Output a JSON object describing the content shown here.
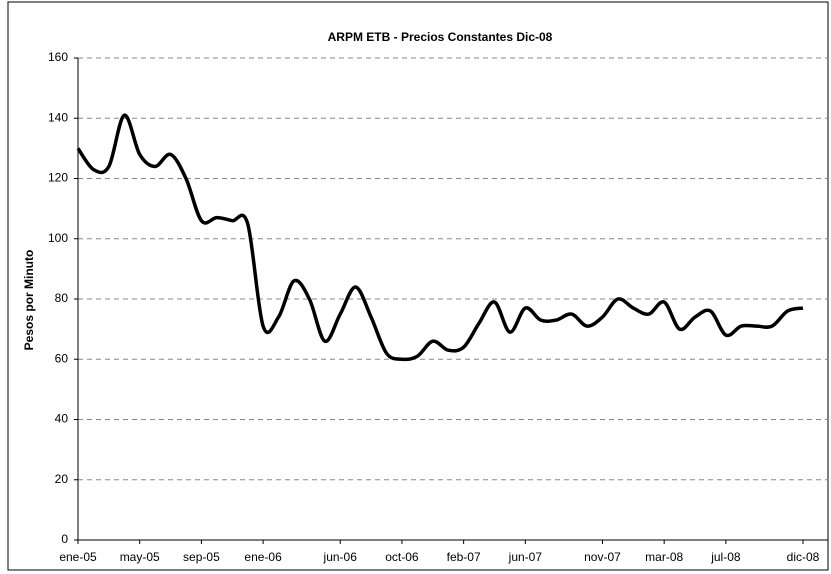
{
  "chart_data": {
    "type": "line",
    "title": "ARPM ETB - Precios Constantes Dic-08",
    "y_label": "Pesos por Minuto",
    "categories": [
      "ene-05",
      null,
      null,
      null,
      "may-05",
      null,
      null,
      null,
      "sep-05",
      null,
      null,
      null,
      "ene-06",
      null,
      null,
      null,
      null,
      "jun-06",
      null,
      null,
      null,
      "oct-06",
      null,
      null,
      null,
      "feb-07",
      null,
      null,
      null,
      "jun-07",
      null,
      null,
      null,
      null,
      "nov-07",
      null,
      null,
      null,
      "mar-08",
      null,
      null,
      null,
      "jul-08",
      null,
      null,
      null,
      null,
      "dic-08"
    ],
    "series": [
      {
        "name": "ARPM",
        "color": "#000000",
        "values": [
          130,
          123,
          124,
          141,
          128,
          124,
          128,
          120,
          106,
          107,
          106,
          105,
          71,
          74,
          86,
          80,
          66,
          75,
          84,
          74,
          62,
          60,
          61,
          66,
          63,
          64,
          72,
          79,
          69,
          77,
          73,
          73,
          75,
          71,
          74,
          80,
          77,
          75,
          79,
          70,
          74,
          76,
          68,
          71,
          71,
          71,
          76,
          77
        ]
      }
    ],
    "ylim": [
      0,
      160
    ],
    "yticks": [
      0,
      20,
      40,
      60,
      80,
      100,
      120,
      140,
      160
    ],
    "grid": true
  }
}
